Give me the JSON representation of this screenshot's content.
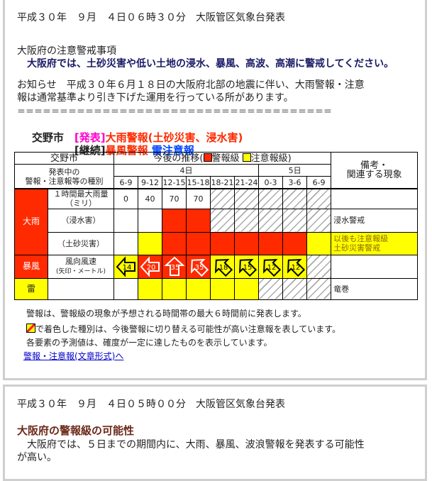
{
  "panel1": {
    "issued": "平成３０年　９月　４日０６時３０分　大阪管区気象台発表",
    "caution_heading": "大阪府の注意警戒事項",
    "caution_text": "　大阪府では、土砂災害や低い土地の浸水、暴風、高波、高潮に警戒してください。",
    "notice_line1": "お知らせ　平成３０年６月１８日の大阪府北部の地震に伴い、大雨警報・注意",
    "notice_line2": "報は通常基準より引き下げた運用を行っている所があります。",
    "separator": "＝＝＝＝＝＝＝＝＝＝＝＝＝＝＝＝＝＝＝＝＝＝＝＝＝＝＝＝＝＝＝＝＝＝＝＝＝",
    "city": "交野市",
    "announce_tag": "[発表]",
    "announce_text": "大雨警報(土砂災害、浸水害)",
    "continue_tag": "[継続]",
    "continue_warning": "暴風警報",
    "continue_advisory": "雷注意報",
    "colors": {
      "announce_tag": "#ff00cc",
      "warning": "#ff2a00",
      "advisory": "#0044ff",
      "warning_level": "#ff2a00",
      "advisory_level": "#ffff00"
    },
    "table": {
      "city": "交野市",
      "trend_label": "今後の推移(",
      "legend_warning": "警報級",
      "legend_advisory": "注意報級)",
      "type_label_1": "発表中の",
      "type_label_2": "警報・注意報等の種別",
      "remarks_1": "備考・",
      "remarks_2": "関連する現象",
      "day1": "4日",
      "day2": "5日",
      "times": [
        "6-9",
        "9-12",
        "12-15",
        "15-18",
        "18-21",
        "21-24",
        "0-3",
        "3-6",
        "6-9"
      ],
      "groups": [
        {
          "name": "大雨",
          "level": "warning",
          "rows": [
            {
              "label": "１時間最大雨量",
              "label2": "（ミリ）",
              "cells": [
                {
                  "v": "0"
                },
                {
                  "v": "40"
                },
                {
                  "v": "70"
                },
                {
                  "v": "70"
                },
                {
                  "s": "none"
                },
                {
                  "s": "none"
                },
                {
                  "s": "none"
                },
                {
                  "s": "none"
                },
                {
                  "s": "none"
                }
              ],
              "remark": ""
            },
            {
              "label": "（浸水害）",
              "cells": [
                {
                  "s": "off"
                },
                {
                  "s": "off"
                },
                {
                  "s": "warning"
                },
                {
                  "s": "warning"
                },
                {
                  "s": "none"
                },
                {
                  "s": "none"
                },
                {
                  "s": "none"
                },
                {
                  "s": "none"
                },
                {
                  "s": "none"
                }
              ],
              "remark": "浸水警戒"
            },
            {
              "label": "（土砂災害）",
              "cells": [
                {
                  "s": "off"
                },
                {
                  "s": "advisory"
                },
                {
                  "s": "warning"
                },
                {
                  "s": "warning"
                },
                {
                  "s": "warning"
                },
                {
                  "s": "warning"
                },
                {
                  "s": "warning"
                },
                {
                  "s": "warning"
                },
                {
                  "s": "advisory"
                }
              ],
              "remark": "以後も注意報級",
              "remark2": "土砂災害警戒",
              "remark_level": "advisory"
            }
          ]
        },
        {
          "name": "暴風",
          "level": "warning",
          "rows": [
            {
              "label": "風向風速",
              "label2": "(矢印・メートル)",
              "cells": [
                {
                  "s": "advisory",
                  "wind": "14",
                  "dir": "E"
                },
                {
                  "s": "warning",
                  "wind": "20",
                  "dir": "E"
                },
                {
                  "s": "warning",
                  "wind": "35",
                  "dir": "S"
                },
                {
                  "s": "warning",
                  "wind": "35",
                  "dir": "SE"
                },
                {
                  "s": "advisory",
                  "wind": "18",
                  "dir": "SE"
                },
                {
                  "s": "advisory",
                  "wind": "15",
                  "dir": "SE"
                },
                {
                  "s": "advisory",
                  "wind": "12",
                  "dir": "SE"
                },
                {
                  "s": "advisory",
                  "wind": "12",
                  "dir": "SE"
                },
                {
                  "s": "none"
                }
              ],
              "remark": ""
            }
          ]
        },
        {
          "name": "雷",
          "level": "advisory",
          "rows": [
            {
              "label": "",
              "cells": [
                {
                  "s": "off"
                },
                {
                  "s": "advisory"
                },
                {
                  "s": "advisory"
                },
                {
                  "s": "advisory"
                },
                {
                  "s": "advisory"
                },
                {
                  "s": "advisory"
                },
                {
                  "s": "none"
                },
                {
                  "s": "none"
                },
                {
                  "s": "none"
                }
              ],
              "remark": "竜巻"
            }
          ]
        }
      ]
    },
    "notes": [
      "警報は、警報級の現象が予想される時間帯の最大６時間前に発表します。",
      "で着色した種別は、今後警報に切り替える可能性が高い注意報を表しています。",
      "各要素の予測値は、確度が一定に達したものを表示しています。"
    ],
    "text_format_link": "警報・注意報(文章形式)へ"
  },
  "panel2": {
    "issued": "平成３０年　９月　４日０５時００分　大阪管区気象台発表",
    "heading": "大阪府の警報級の可能性",
    "body_line1": "　大阪府では、５日までの期間内に、大雨、暴風、波浪警報を発表する可能性",
    "body_line2": "が高い。"
  }
}
